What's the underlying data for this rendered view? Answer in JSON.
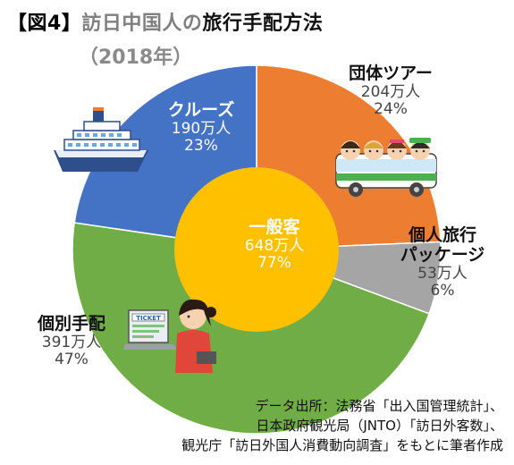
{
  "title": {
    "tag": "【図4】",
    "part1": "訪日中国人の",
    "part2": "旅行手配方法",
    "subtitle": "（2018年）"
  },
  "chart_data": {
    "type": "pie",
    "title": "訪日中国人の旅行手配方法（2018年）",
    "outer_ring": [
      {
        "name": "団体ツアー",
        "value": 204,
        "value_label": "204万人",
        "percent": 24,
        "percent_label": "24%",
        "color": "#ED7D31"
      },
      {
        "name": "個人旅行パッケージ",
        "name_lines": [
          "個人旅行",
          "パッケージ"
        ],
        "value": 53,
        "value_label": "53万人",
        "percent": 6,
        "percent_label": "6%",
        "color": "#A5A5A5"
      },
      {
        "name": "個別手配",
        "value": 391,
        "value_label": "391万人",
        "percent": 47,
        "percent_label": "47%",
        "color": "#70AD47"
      },
      {
        "name": "クルーズ",
        "value": 190,
        "value_label": "190万人",
        "percent": 23,
        "percent_label": "23%",
        "color": "#4472C4"
      }
    ],
    "inner": {
      "name": "一般客",
      "value": 648,
      "value_label": "648万人",
      "percent": 77,
      "percent_label": "77%",
      "color": "#FFC000"
    },
    "legend": "none"
  },
  "source": {
    "lines": [
      "データ出所：法務省「出入国管理統計」、",
      "日本政府観光局（JNTO）「訪日外客数」、",
      "観光庁「訪日外国人消費動向調査」をもとに筆者作成"
    ]
  },
  "icons": {
    "ship": "cruise-ship-icon",
    "bus": "tour-bus-icon",
    "person": "person-laptop-icon"
  }
}
